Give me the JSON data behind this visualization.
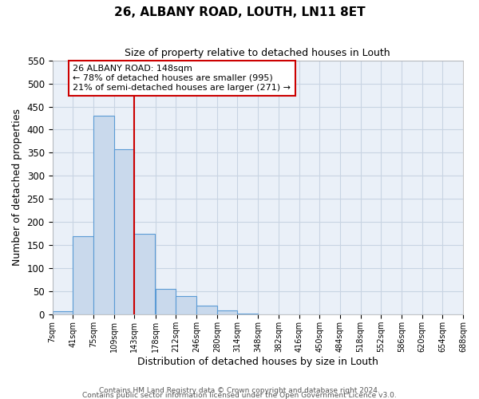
{
  "title": "26, ALBANY ROAD, LOUTH, LN11 8ET",
  "subtitle": "Size of property relative to detached houses in Louth",
  "xlabel": "Distribution of detached houses by size in Louth",
  "ylabel": "Number of detached properties",
  "footer_line1": "Contains HM Land Registry data © Crown copyright and database right 2024.",
  "footer_line2": "Contains public sector information licensed under the Open Government Licence v3.0.",
  "annotation_title": "26 ALBANY ROAD: 148sqm",
  "annotation_line1": "← 78% of detached houses are smaller (995)",
  "annotation_line2": "21% of semi-detached houses are larger (271) →",
  "bin_edges": [
    7,
    41,
    75,
    109,
    143,
    178,
    212,
    246,
    280,
    314,
    348,
    382,
    416,
    450,
    484,
    518,
    552,
    586,
    620,
    654,
    688
  ],
  "bin_heights": [
    8,
    170,
    430,
    357,
    175,
    56,
    40,
    20,
    10,
    2,
    0,
    0,
    0,
    0,
    0,
    0,
    1,
    0,
    0,
    1
  ],
  "bar_facecolor": "#c9d9ec",
  "bar_edgecolor": "#5b9bd5",
  "vline_color": "#cc0000",
  "grid_color": "#c8d4e3",
  "background_color": "#eaf0f8",
  "annotation_box_edgecolor": "#cc0000",
  "ylim": [
    0,
    550
  ],
  "yticks": [
    0,
    50,
    100,
    150,
    200,
    250,
    300,
    350,
    400,
    450,
    500,
    550
  ]
}
